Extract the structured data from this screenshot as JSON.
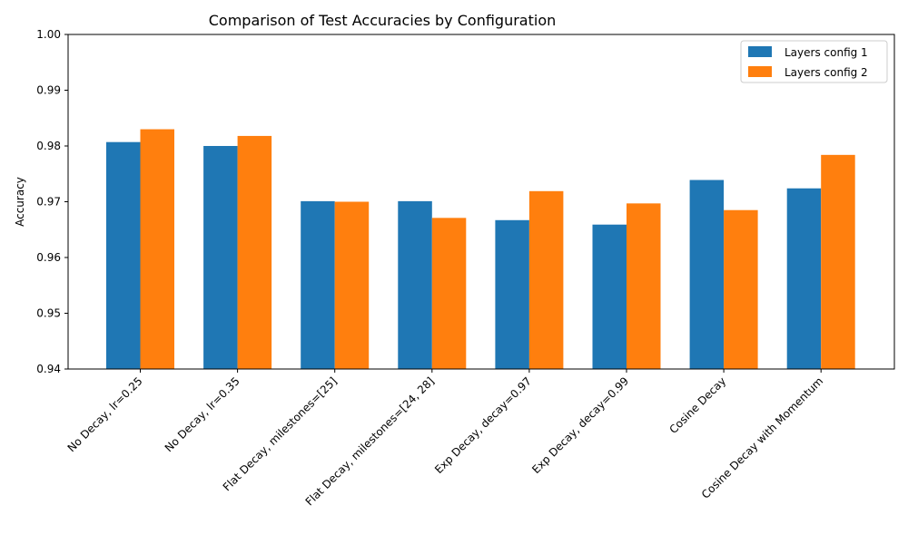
{
  "chart_data": {
    "type": "bar",
    "title": "Comparison of Test Accuracies by Configuration",
    "xlabel": "",
    "ylabel": "Accuracy",
    "ylim": [
      0.94,
      1.0
    ],
    "yticks": [
      "0.94",
      "0.95",
      "0.96",
      "0.97",
      "0.98",
      "0.99",
      "1.00"
    ],
    "grid": false,
    "legend_position": "top-right",
    "categories": [
      "No Decay, lr=0.25",
      "No Decay, lr=0.35",
      "Flat Decay, milestones=[25]",
      "Flat Decay, milestones=[24, 28]",
      "Exp Decay, decay=0.97",
      "Exp Decay, decay=0.99",
      "Cosine Decay",
      "Cosine Decay with Momentum"
    ],
    "series": [
      {
        "name": "Layers config 1",
        "color": "#1f77b4",
        "values": [
          0.9807,
          0.98,
          0.9701,
          0.9701,
          0.9667,
          0.9659,
          0.9739,
          0.9724
        ]
      },
      {
        "name": "Layers config 2",
        "color": "#ff7f0e",
        "values": [
          0.983,
          0.9818,
          0.97,
          0.9671,
          0.9719,
          0.9697,
          0.9685,
          0.9784
        ]
      }
    ]
  }
}
